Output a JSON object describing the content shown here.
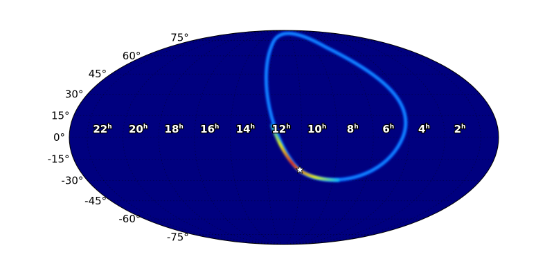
{
  "chart_data": {
    "type": "heatmap",
    "projection": "mollweide",
    "title": "",
    "colormap": "jet",
    "background_color": "#00007f",
    "grid": true,
    "ra_tick_labels": [
      {
        "value": 22,
        "label": "22",
        "unit": "h"
      },
      {
        "value": 20,
        "label": "20",
        "unit": "h"
      },
      {
        "value": 18,
        "label": "18",
        "unit": "h"
      },
      {
        "value": 16,
        "label": "16",
        "unit": "h"
      },
      {
        "value": 14,
        "label": "14",
        "unit": "h"
      },
      {
        "value": 12,
        "label": "12",
        "unit": "h"
      },
      {
        "value": 10,
        "label": "10",
        "unit": "h"
      },
      {
        "value": 8,
        "label": "8",
        "unit": "h"
      },
      {
        "value": 6,
        "label": "6",
        "unit": "h"
      },
      {
        "value": 4,
        "label": "4",
        "unit": "h"
      },
      {
        "value": 2,
        "label": "2",
        "unit": "h"
      }
    ],
    "dec_tick_labels": [
      {
        "value": 75,
        "label": "75°"
      },
      {
        "value": 60,
        "label": "60°"
      },
      {
        "value": 45,
        "label": "45°"
      },
      {
        "value": 30,
        "label": "30°"
      },
      {
        "value": 15,
        "label": "15°"
      },
      {
        "value": 0,
        "label": "0°"
      },
      {
        "value": -15,
        "label": "-15°"
      },
      {
        "value": -30,
        "label": "-30°"
      },
      {
        "value": -45,
        "label": "-45°"
      },
      {
        "value": -60,
        "label": "-60°"
      },
      {
        "value": -75,
        "label": "-75°"
      }
    ],
    "probability_ring": {
      "description_colors": [
        "#0040ff",
        "#00c0ff",
        "#ffff00",
        "#ff0000"
      ]
    },
    "marker": {
      "symbol": "star",
      "ra_hours": 10.9,
      "dec_deg": -20,
      "color": "#ffffff"
    }
  }
}
